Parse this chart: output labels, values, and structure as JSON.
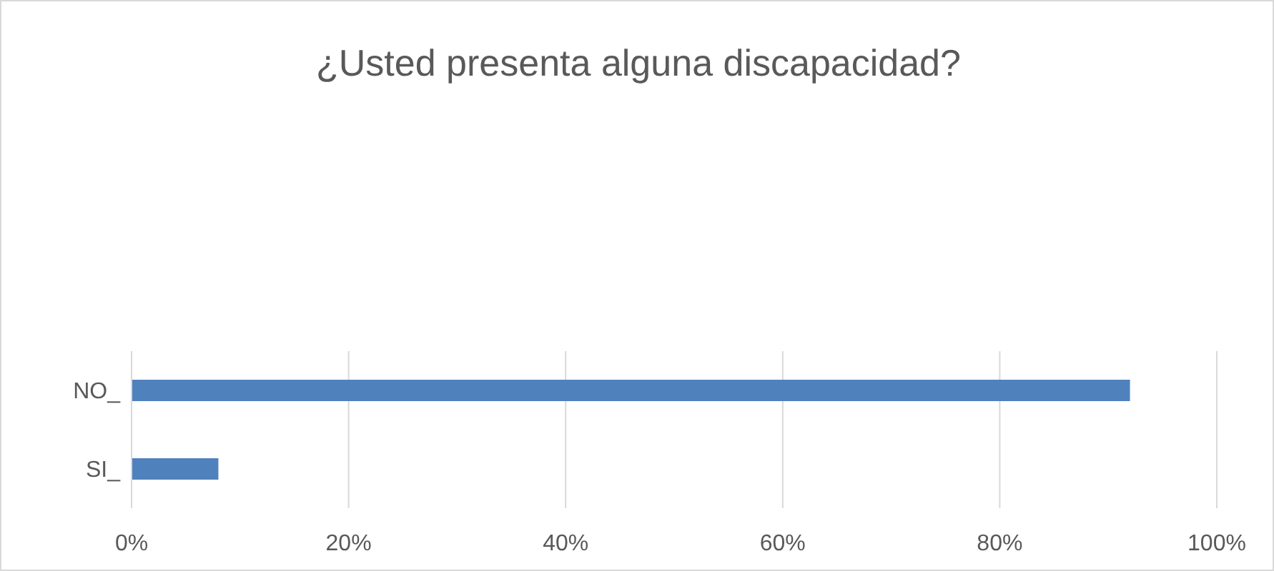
{
  "chart_data": {
    "type": "bar",
    "orientation": "horizontal",
    "title": "¿Usted presenta alguna discapacidad?",
    "categories": [
      "NO_",
      "SI_"
    ],
    "values": [
      92,
      8
    ],
    "color": "#4f81bd",
    "xlim": [
      0,
      100
    ],
    "xticks": [
      {
        "value": 0,
        "label": "0%"
      },
      {
        "value": 20,
        "label": "20%"
      },
      {
        "value": 40,
        "label": "40%"
      },
      {
        "value": 60,
        "label": "60%"
      },
      {
        "value": 80,
        "label": "80%"
      },
      {
        "value": 100,
        "label": "100%"
      }
    ],
    "grid": "x"
  }
}
